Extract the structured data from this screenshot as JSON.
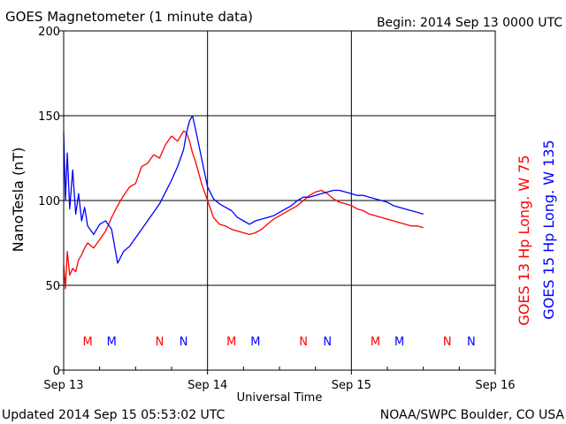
{
  "header": {
    "title": "GOES Magnetometer (1 minute data)",
    "begin": "Begin:  2014 Sep 13 0000 UTC"
  },
  "footer": {
    "updated": "Updated 2014 Sep 15 05:53:02 UTC",
    "credit": "NOAA/SWPC Boulder, CO USA"
  },
  "chart_data": {
    "type": "line",
    "ylabel": "NanoTesla (nT)",
    "xlabel": "Universal Time",
    "ylim": [
      0,
      200
    ],
    "xlim": [
      0,
      72
    ],
    "x_unit": "hours since 2014 Sep 13 0000 UTC",
    "yticks": [
      0,
      50,
      100,
      150,
      200
    ],
    "xticks": [
      {
        "x": 0,
        "label": "Sep 13"
      },
      {
        "x": 24,
        "label": "Sep 14"
      },
      {
        "x": 48,
        "label": "Sep 15"
      },
      {
        "x": 72,
        "label": "Sep 16"
      }
    ],
    "grid": true,
    "series": [
      {
        "name": "GOES 13 Hp  Long. W 75",
        "color": "#ff0000",
        "x": [
          0,
          0.3,
          0.6,
          1,
          1.5,
          2,
          2.5,
          3,
          3.5,
          4,
          5,
          6,
          7,
          8,
          9,
          10,
          11,
          12,
          13,
          14,
          15,
          16,
          17,
          18,
          19,
          20,
          20.5,
          21,
          21.5,
          22,
          23,
          24,
          25,
          26,
          27,
          28,
          29,
          30,
          31,
          32,
          33,
          34,
          35,
          36,
          37,
          38,
          39,
          40,
          41,
          42,
          43,
          44,
          45,
          46,
          47,
          48,
          49,
          50,
          51,
          52,
          53,
          54,
          55,
          56,
          57,
          58,
          59,
          60
        ],
        "values": [
          62,
          48,
          70,
          56,
          60,
          58,
          65,
          68,
          72,
          75,
          72,
          77,
          82,
          90,
          97,
          103,
          108,
          110,
          120,
          122,
          127,
          125,
          133,
          138,
          135,
          141,
          140,
          135,
          128,
          123,
          110,
          100,
          90,
          86,
          85,
          83,
          82,
          81,
          80,
          81,
          83,
          86,
          89,
          91,
          93,
          95,
          97,
          100,
          103,
          105,
          106,
          104,
          101,
          99,
          98,
          97,
          95,
          94,
          92,
          91,
          90,
          89,
          88,
          87,
          86,
          85,
          85,
          84
        ]
      },
      {
        "name": "GOES 15 Hp  Long. W 135",
        "color": "#0000ff",
        "x": [
          0,
          0.3,
          0.6,
          1,
          1.5,
          2,
          2.5,
          3,
          3.5,
          4,
          5,
          6,
          7,
          8,
          9,
          10,
          11,
          12,
          13,
          14,
          15,
          16,
          17,
          18,
          19,
          20,
          20.5,
          21,
          21.5,
          22,
          23,
          24,
          25,
          26,
          27,
          28,
          29,
          30,
          31,
          32,
          33,
          34,
          35,
          36,
          37,
          38,
          39,
          40,
          41,
          42,
          43,
          44,
          45,
          46,
          47,
          48,
          49,
          50,
          51,
          52,
          53,
          54,
          55,
          56,
          57,
          58,
          59,
          60
        ],
        "values": [
          140,
          100,
          128,
          95,
          118,
          92,
          104,
          88,
          96,
          85,
          80,
          86,
          88,
          83,
          63,
          70,
          73,
          78,
          83,
          88,
          93,
          98,
          105,
          112,
          120,
          130,
          140,
          147,
          150,
          142,
          125,
          108,
          101,
          98,
          96,
          94,
          90,
          88,
          86,
          88,
          89,
          90,
          91,
          93,
          95,
          97,
          100,
          102,
          102,
          103,
          104,
          105,
          106,
          106,
          105,
          104,
          103,
          103,
          102,
          101,
          100,
          99,
          97,
          96,
          95,
          94,
          93,
          92
        ]
      }
    ],
    "annotations": [
      {
        "x": 4,
        "label": "M",
        "color": "#ff0000"
      },
      {
        "x": 8,
        "label": "M",
        "color": "#0000ff"
      },
      {
        "x": 16,
        "label": "N",
        "color": "#ff0000"
      },
      {
        "x": 20,
        "label": "N",
        "color": "#0000ff"
      },
      {
        "x": 28,
        "label": "M",
        "color": "#ff0000"
      },
      {
        "x": 32,
        "label": "M",
        "color": "#0000ff"
      },
      {
        "x": 40,
        "label": "N",
        "color": "#ff0000"
      },
      {
        "x": 44,
        "label": "N",
        "color": "#0000ff"
      },
      {
        "x": 52,
        "label": "M",
        "color": "#ff0000"
      },
      {
        "x": 56,
        "label": "M",
        "color": "#0000ff"
      },
      {
        "x": 64,
        "label": "N",
        "color": "#ff0000"
      },
      {
        "x": 68,
        "label": "N",
        "color": "#0000ff"
      }
    ]
  }
}
